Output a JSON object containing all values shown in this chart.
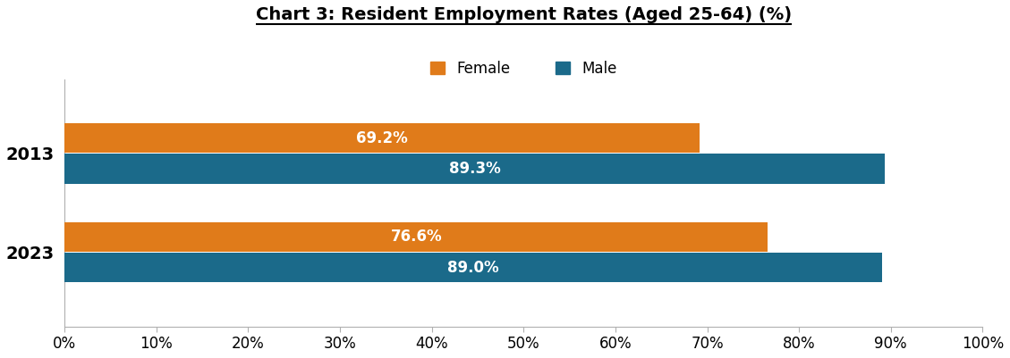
{
  "title": "Chart 3: Resident Employment Rates (Aged 25-64) (%)",
  "categories": [
    "2013",
    "2023"
  ],
  "female_values": [
    69.2,
    76.6
  ],
  "male_values": [
    89.3,
    89.0
  ],
  "female_color": "#E07B1A",
  "male_color": "#1B6A8A",
  "female_label": "Female",
  "male_label": "Male",
  "xlim": [
    0,
    100
  ],
  "xticks": [
    0,
    10,
    20,
    30,
    40,
    50,
    60,
    70,
    80,
    90,
    100
  ],
  "bar_label_color": "white",
  "bar_label_fontsize": 12,
  "title_fontsize": 14,
  "legend_fontsize": 12,
  "ytick_fontsize": 14,
  "xtick_fontsize": 12,
  "background_color": "#ffffff",
  "bar_height": 0.3,
  "bar_gap": 0.01
}
